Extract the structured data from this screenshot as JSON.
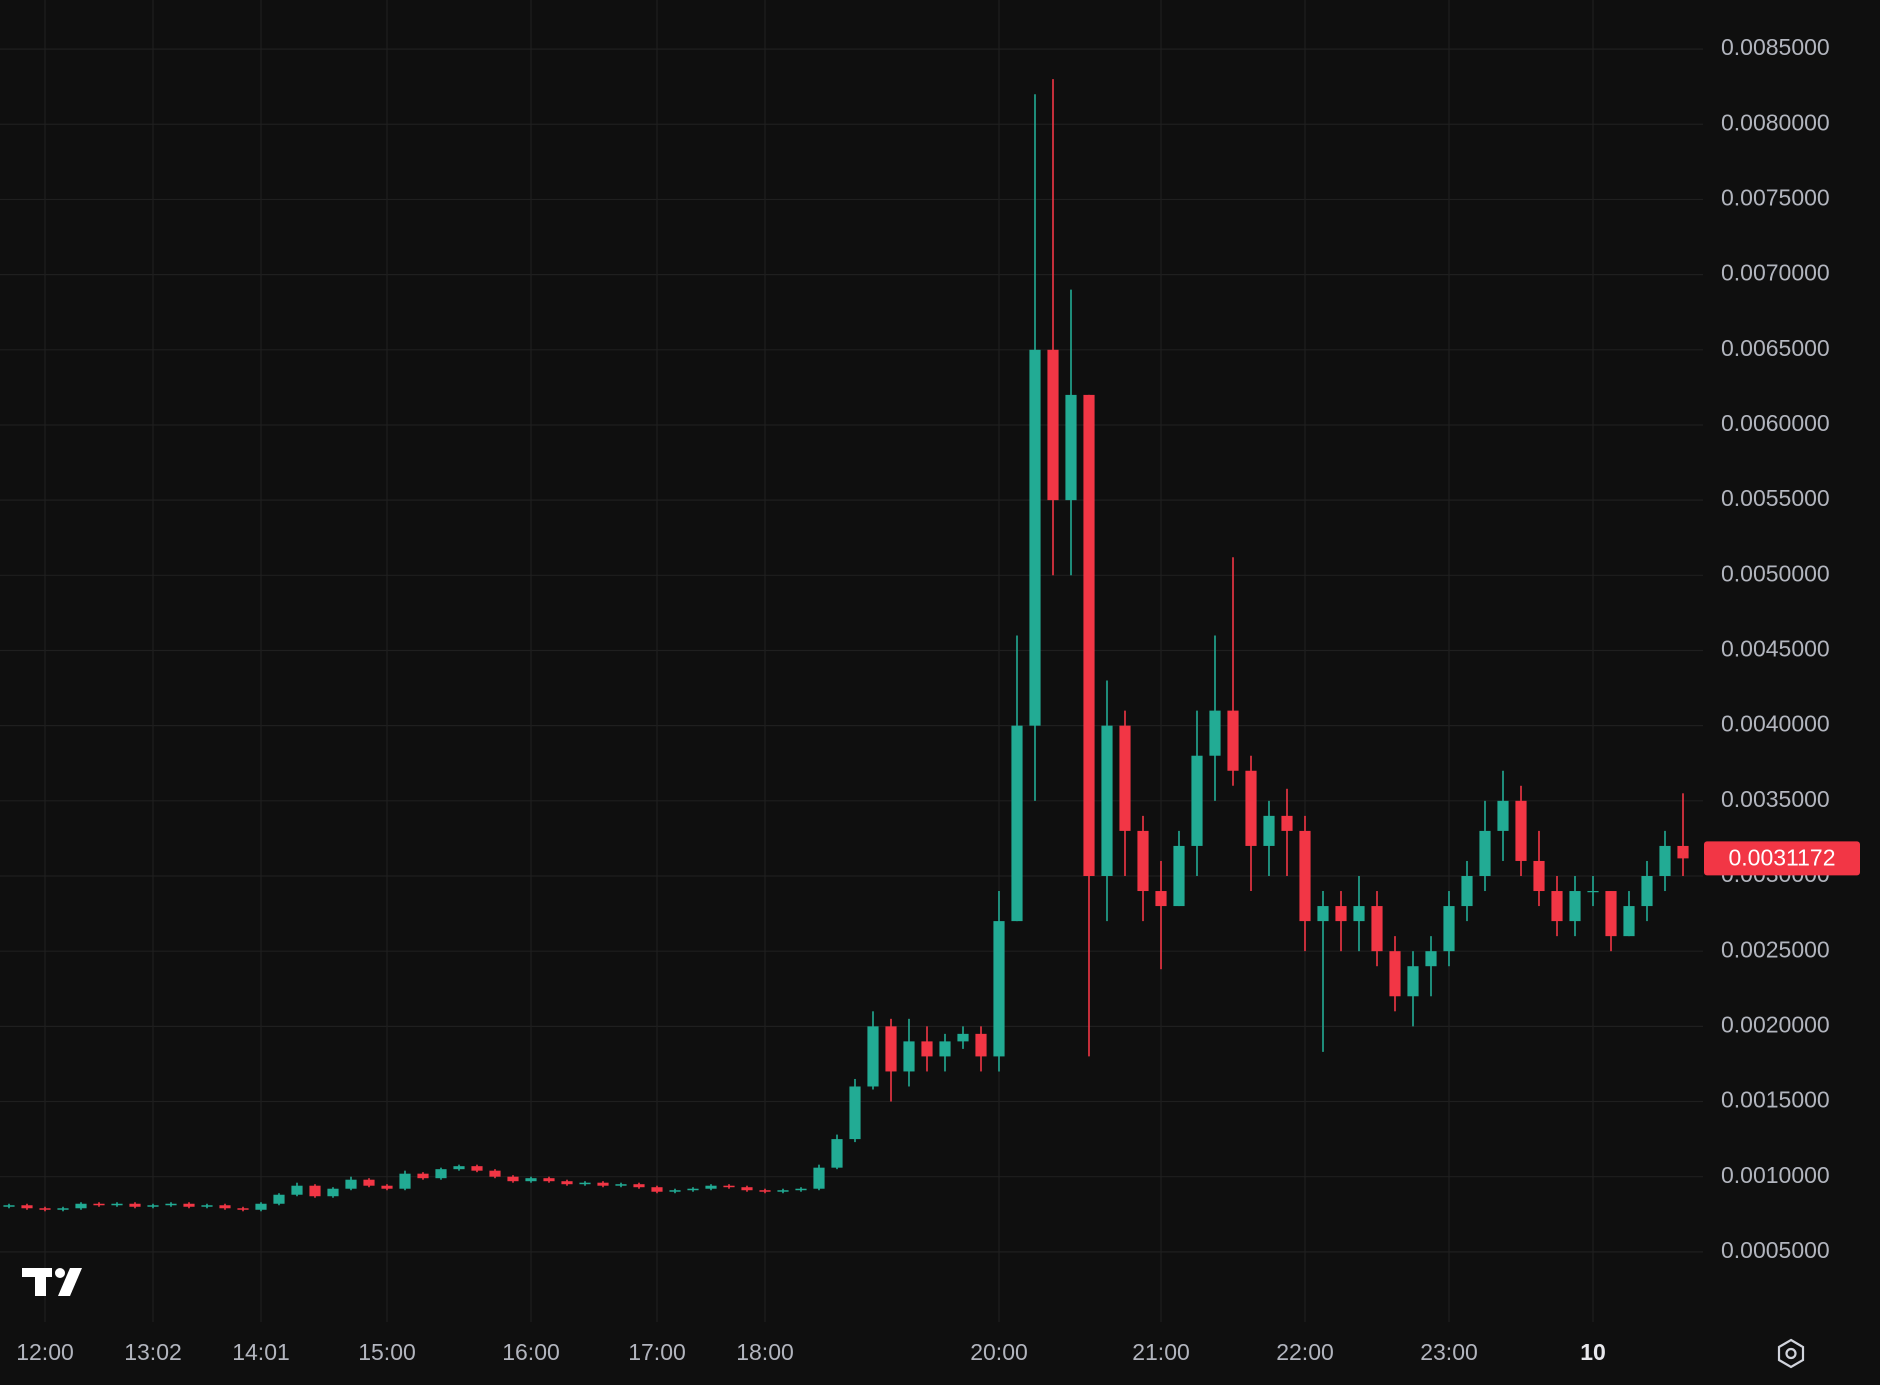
{
  "chart_data": {
    "type": "candlestick",
    "categories": [
      null,
      null,
      "12:00",
      null,
      null,
      null,
      null,
      null,
      "13:02",
      null,
      null,
      null,
      null,
      null,
      "14:01",
      null,
      null,
      null,
      null,
      null,
      null,
      "15:00",
      null,
      null,
      null,
      null,
      null,
      null,
      null,
      "16:00",
      null,
      null,
      null,
      null,
      null,
      null,
      "17:00",
      null,
      null,
      null,
      null,
      null,
      "18:00",
      null,
      null,
      null,
      null,
      null,
      null,
      null,
      null,
      null,
      null,
      null,
      null,
      "20:00",
      null,
      null,
      null,
      null,
      null,
      null,
      null,
      null,
      "21:00",
      null,
      null,
      null,
      null,
      null,
      null,
      null,
      "22:00",
      null,
      null,
      null,
      null,
      null,
      null,
      null,
      "23:00",
      null,
      null,
      null,
      null,
      null,
      null,
      null,
      "10",
      null,
      null,
      null,
      null,
      null
    ],
    "open": [
      0.0008,
      0.00081,
      0.00079,
      0.00078,
      0.00079,
      0.00082,
      0.00081,
      0.00082,
      0.0008,
      0.00081,
      0.00082,
      0.0008,
      0.00081,
      0.00079,
      0.00078,
      0.00082,
      0.00088,
      0.00094,
      0.00087,
      0.00092,
      0.00098,
      0.00094,
      0.00092,
      0.00102,
      0.00099,
      0.00105,
      0.00107,
      0.00104,
      0.001,
      0.00097,
      0.00099,
      0.00097,
      0.00095,
      0.00096,
      0.00094,
      0.00095,
      0.00093,
      0.0009,
      0.00091,
      0.00092,
      0.00094,
      0.00093,
      0.00091,
      0.0009,
      0.00091,
      0.00092,
      0.00106,
      0.00125,
      0.0016,
      0.002,
      0.0017,
      0.0019,
      0.0018,
      0.0019,
      0.00195,
      0.0018,
      0.0027,
      0.004,
      0.0065,
      0.0055,
      0.0062,
      0.003,
      0.004,
      0.0033,
      0.0029,
      0.0028,
      0.0032,
      0.0038,
      0.0041,
      0.0037,
      0.0032,
      0.0034,
      0.0033,
      0.0027,
      0.0028,
      0.0027,
      0.0028,
      0.0025,
      0.0022,
      0.0024,
      0.0025,
      0.0028,
      0.003,
      0.0033,
      0.0035,
      0.0031,
      0.0029,
      0.0027,
      0.0029,
      0.0029,
      0.0026,
      0.0028,
      0.003,
      0.0032
    ],
    "high": [
      0.00082,
      0.00082,
      0.0008,
      0.0008,
      0.00083,
      0.00083,
      0.00083,
      0.00083,
      0.00082,
      0.00083,
      0.00083,
      0.00082,
      0.00082,
      0.0008,
      0.00083,
      0.00089,
      0.00096,
      0.00095,
      0.00093,
      0.001,
      0.00099,
      0.00095,
      0.00104,
      0.00103,
      0.00106,
      0.00108,
      0.00108,
      0.00105,
      0.00101,
      0.001,
      0.001,
      0.00098,
      0.00097,
      0.00097,
      0.00096,
      0.00096,
      0.00094,
      0.00092,
      0.00093,
      0.00095,
      0.00095,
      0.00094,
      0.00092,
      0.00092,
      0.00093,
      0.00108,
      0.00128,
      0.00165,
      0.0021,
      0.00205,
      0.00205,
      0.002,
      0.00195,
      0.002,
      0.002,
      0.0029,
      0.0046,
      0.0082,
      0.0083,
      0.0069,
      0.0062,
      0.0043,
      0.0041,
      0.0034,
      0.0031,
      0.0033,
      0.0041,
      0.0046,
      0.00512,
      0.0038,
      0.0035,
      0.00358,
      0.0034,
      0.0029,
      0.0029,
      0.003,
      0.0029,
      0.0026,
      0.0025,
      0.0026,
      0.0029,
      0.0031,
      0.0035,
      0.0037,
      0.0036,
      0.0033,
      0.003,
      0.003,
      0.003,
      0.0029,
      0.0029,
      0.0031,
      0.0033,
      0.00355
    ],
    "low": [
      0.00079,
      0.00078,
      0.00077,
      0.00077,
      0.00078,
      0.0008,
      0.0008,
      0.00079,
      0.00079,
      0.0008,
      0.00079,
      0.00079,
      0.00078,
      0.00077,
      0.00077,
      0.00081,
      0.00087,
      0.00086,
      0.00086,
      0.00091,
      0.00093,
      0.00091,
      0.00091,
      0.00098,
      0.00098,
      0.00104,
      0.00103,
      0.00099,
      0.00096,
      0.00096,
      0.00096,
      0.00094,
      0.00094,
      0.00093,
      0.00093,
      0.00092,
      0.00089,
      0.00089,
      0.0009,
      0.00091,
      0.00092,
      0.0009,
      0.00089,
      0.00089,
      0.0009,
      0.00091,
      0.00105,
      0.00123,
      0.00158,
      0.0015,
      0.0016,
      0.0017,
      0.0017,
      0.00185,
      0.0017,
      0.0017,
      0.0027,
      0.0035,
      0.005,
      0.005,
      0.0018,
      0.0027,
      0.003,
      0.0027,
      0.00238,
      0.0028,
      0.003,
      0.0035,
      0.0036,
      0.0029,
      0.003,
      0.003,
      0.0025,
      0.00183,
      0.0025,
      0.0025,
      0.0024,
      0.0021,
      0.002,
      0.0022,
      0.0024,
      0.0027,
      0.0029,
      0.0031,
      0.003,
      0.0028,
      0.0026,
      0.0026,
      0.0028,
      0.0025,
      0.0026,
      0.0027,
      0.0029,
      0.003
    ],
    "close": [
      0.00081,
      0.00079,
      0.00078,
      0.00079,
      0.00082,
      0.00081,
      0.00082,
      0.0008,
      0.00081,
      0.00082,
      0.0008,
      0.00081,
      0.00079,
      0.00078,
      0.00082,
      0.00088,
      0.00094,
      0.00087,
      0.00092,
      0.00098,
      0.00094,
      0.00092,
      0.00102,
      0.00099,
      0.00105,
      0.00107,
      0.00104,
      0.001,
      0.00097,
      0.00099,
      0.00097,
      0.00095,
      0.00096,
      0.00094,
      0.00095,
      0.00093,
      0.0009,
      0.00091,
      0.00092,
      0.00094,
      0.00093,
      0.00091,
      0.0009,
      0.00091,
      0.00092,
      0.00106,
      0.00125,
      0.0016,
      0.002,
      0.0017,
      0.0019,
      0.0018,
      0.0019,
      0.00195,
      0.0018,
      0.0027,
      0.004,
      0.0065,
      0.0055,
      0.0062,
      0.003,
      0.004,
      0.0033,
      0.0029,
      0.0028,
      0.0032,
      0.0038,
      0.0041,
      0.0037,
      0.0032,
      0.0034,
      0.0033,
      0.0027,
      0.0028,
      0.0027,
      0.0028,
      0.0025,
      0.0022,
      0.0024,
      0.0025,
      0.0028,
      0.003,
      0.0033,
      0.0035,
      0.0031,
      0.0029,
      0.0027,
      0.0029,
      0.0029,
      0.0026,
      0.0028,
      0.003,
      0.0032,
      0.0031172
    ],
    "up_color": "#22ab94",
    "down_color": "#f23645",
    "ylim": [
      0.0001,
      0.0088
    ],
    "yticks": [
      {
        "value": 0.0005,
        "label": "0.0005000"
      },
      {
        "value": 0.001,
        "label": "0.0010000"
      },
      {
        "value": 0.0015,
        "label": "0.0015000"
      },
      {
        "value": 0.002,
        "label": "0.0020000"
      },
      {
        "value": 0.0025,
        "label": "0.0025000"
      },
      {
        "value": 0.003,
        "label": "0.0030000"
      },
      {
        "value": 0.0035,
        "label": "0.0035000"
      },
      {
        "value": 0.004,
        "label": "0.0040000"
      },
      {
        "value": 0.0045,
        "label": "0.0045000"
      },
      {
        "value": 0.005,
        "label": "0.0050000"
      },
      {
        "value": 0.0055,
        "label": "0.0055000"
      },
      {
        "value": 0.006,
        "label": "0.0060000"
      },
      {
        "value": 0.0065,
        "label": "0.0065000"
      },
      {
        "value": 0.007,
        "label": "0.0070000"
      },
      {
        "value": 0.0075,
        "label": "0.0075000"
      },
      {
        "value": 0.008,
        "label": "0.0080000"
      },
      {
        "value": 0.0085,
        "label": "0.0085000"
      }
    ],
    "grid": true
  }
}
